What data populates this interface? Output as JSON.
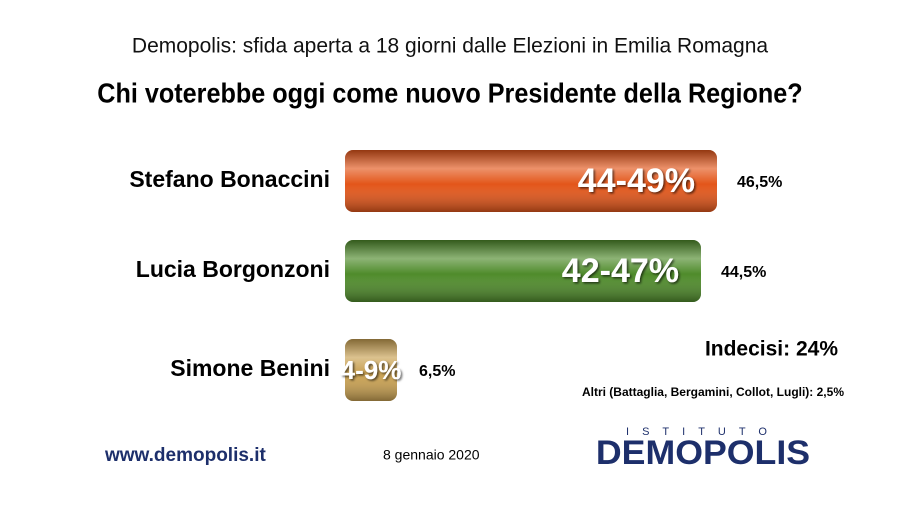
{
  "chart_data": {
    "type": "bar",
    "orientation": "horizontal",
    "title": "Demopolis: sfida aperta a 18 giorni dalle Elezioni in Emilia Romagna",
    "subtitle": "Chi voterebbe oggi come nuovo Presidente della Regione?",
    "categories": [
      "Stefano Bonaccini",
      "Lucia Borgonzoni",
      "Simone Benini"
    ],
    "values": [
      46.5,
      44.5,
      6.5
    ],
    "value_labels": [
      "46,5%",
      "44,5%",
      "6,5%"
    ],
    "range_labels": [
      "44-49%",
      "42-47%",
      "4-9%"
    ],
    "colors": [
      "#e3561a",
      "#4f8b2b",
      "#c9a152"
    ],
    "xlim": [
      0,
      50
    ],
    "annotations": [
      "Indecisi: 24%",
      "Altri (Battaglia, Bergamini, Collot, Lugli): 2,5%"
    ],
    "footer": {
      "website": "www.demopolis.it",
      "date": "8 gennaio 2020",
      "logo_top": "ISTITUTO",
      "logo": "DEMOPOLIS"
    }
  }
}
